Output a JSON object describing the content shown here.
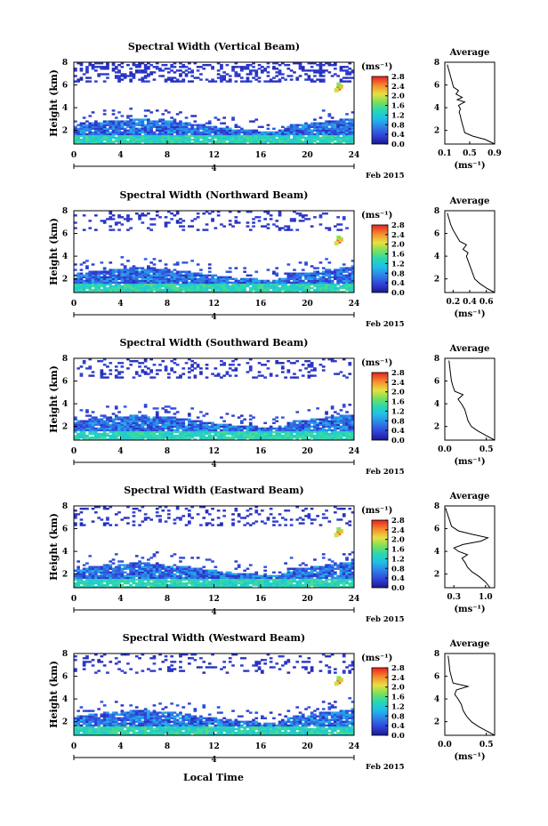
{
  "figure": {
    "xlabel": "Local Time",
    "date_label": "Feb 2015",
    "day_label": "4",
    "colorbar_unit": "(ms⁻¹)",
    "avg_title": "Average",
    "avg_xunit": "(ms⁻¹)"
  },
  "chart_data": [
    {
      "type": "heatmap",
      "title": "Spectral Width (Vertical Beam)",
      "ylabel": "Height (km)",
      "xlim": [
        0,
        24
      ],
      "xticks": [
        0,
        4,
        8,
        12,
        16,
        20,
        24
      ],
      "ylim": [
        0.8,
        8
      ],
      "yticks": [
        2,
        4,
        6,
        8
      ],
      "colorbar": {
        "unit": "(ms⁻¹)",
        "range": [
          0.0,
          2.8
        ],
        "ticks": [
          "2.8",
          "2.4",
          "2.0",
          "1.6",
          "1.2",
          "0.8",
          "0.4",
          "0.0"
        ]
      },
      "average_profile": {
        "title": "Average",
        "xunit": "(ms⁻¹)",
        "xticks": [
          "0.1",
          "0.5",
          "0.9"
        ],
        "xlim": [
          0.1,
          0.9
        ],
        "ylim": [
          0.8,
          8
        ],
        "yticks": [
          2,
          4,
          6,
          8
        ],
        "points": [
          [
            0.9,
            0.8
          ],
          [
            0.75,
            1.2
          ],
          [
            0.55,
            1.5
          ],
          [
            0.42,
            1.8
          ],
          [
            0.4,
            2.2
          ],
          [
            0.38,
            2.6
          ],
          [
            0.36,
            3.0
          ],
          [
            0.35,
            3.3
          ],
          [
            0.33,
            3.6
          ],
          [
            0.35,
            3.9
          ],
          [
            0.32,
            4.2
          ],
          [
            0.42,
            4.5
          ],
          [
            0.3,
            4.7
          ],
          [
            0.38,
            4.9
          ],
          [
            0.28,
            5.2
          ],
          [
            0.32,
            5.5
          ],
          [
            0.24,
            5.8
          ],
          [
            0.22,
            6.2
          ],
          [
            0.2,
            6.6
          ],
          [
            0.18,
            7.0
          ],
          [
            0.16,
            7.4
          ],
          [
            0.14,
            7.8
          ]
        ]
      },
      "hot_spot_time": 22.5,
      "hot_spot_height": 5.6
    },
    {
      "type": "heatmap",
      "title": "Spectral Width (Northward Beam)",
      "ylabel": "Height (km)",
      "xlim": [
        0,
        24
      ],
      "xticks": [
        0,
        4,
        8,
        12,
        16,
        20,
        24
      ],
      "ylim": [
        0.8,
        8
      ],
      "yticks": [
        2,
        4,
        6,
        8
      ],
      "colorbar": {
        "unit": "(ms⁻¹)",
        "range": [
          0.0,
          2.8
        ],
        "ticks": [
          "2.8",
          "2.4",
          "2.0",
          "1.6",
          "1.2",
          "0.8",
          "0.4",
          "0.0"
        ]
      },
      "average_profile": {
        "title": "Average",
        "xunit": "(ms⁻¹)",
        "xticks": [
          "0.2",
          "0.4",
          "0.6"
        ],
        "xlim": [
          0.1,
          0.7
        ],
        "ylim": [
          0.8,
          8
        ],
        "yticks": [
          2,
          4,
          6,
          8
        ],
        "points": [
          [
            0.7,
            0.8
          ],
          [
            0.6,
            1.2
          ],
          [
            0.52,
            1.6
          ],
          [
            0.46,
            2.0
          ],
          [
            0.44,
            2.4
          ],
          [
            0.42,
            2.8
          ],
          [
            0.4,
            3.2
          ],
          [
            0.38,
            3.6
          ],
          [
            0.36,
            4.0
          ],
          [
            0.38,
            4.3
          ],
          [
            0.32,
            4.6
          ],
          [
            0.36,
            5.0
          ],
          [
            0.28,
            5.3
          ],
          [
            0.24,
            5.8
          ],
          [
            0.2,
            6.3
          ],
          [
            0.17,
            6.8
          ],
          [
            0.15,
            7.3
          ],
          [
            0.13,
            7.8
          ]
        ]
      },
      "hot_spot_time": 22.5,
      "hot_spot_height": 5.2
    },
    {
      "type": "heatmap",
      "title": "Spectral Width (Southward Beam)",
      "ylabel": "Height (km)",
      "xlim": [
        0,
        24
      ],
      "xticks": [
        0,
        4,
        8,
        12,
        16,
        20,
        24
      ],
      "ylim": [
        0.8,
        8
      ],
      "yticks": [
        2,
        4,
        6,
        8
      ],
      "colorbar": {
        "unit": "(ms⁻¹)",
        "range": [
          0.0,
          2.8
        ],
        "ticks": [
          "2.8",
          "2.4",
          "2.0",
          "1.6",
          "1.2",
          "0.8",
          "0.4",
          "0.0"
        ]
      },
      "average_profile": {
        "title": "Average",
        "xunit": "(ms⁻¹)",
        "xticks": [
          "0.0",
          "0.5"
        ],
        "xlim": [
          0.0,
          0.6
        ],
        "ylim": [
          0.8,
          8
        ],
        "yticks": [
          2,
          4,
          6,
          8
        ],
        "points": [
          [
            0.6,
            0.8
          ],
          [
            0.5,
            1.2
          ],
          [
            0.4,
            1.6
          ],
          [
            0.32,
            2.0
          ],
          [
            0.28,
            2.5
          ],
          [
            0.26,
            3.0
          ],
          [
            0.24,
            3.5
          ],
          [
            0.2,
            4.0
          ],
          [
            0.16,
            4.4
          ],
          [
            0.22,
            4.8
          ],
          [
            0.12,
            5.1
          ],
          [
            0.1,
            5.5
          ],
          [
            0.08,
            6.0
          ],
          [
            0.07,
            6.6
          ],
          [
            0.06,
            7.2
          ],
          [
            0.05,
            7.8
          ]
        ]
      },
      "hot_spot_time": null,
      "hot_spot_height": null
    },
    {
      "type": "heatmap",
      "title": "Spectral Width (Eastward Beam)",
      "ylabel": "Height (km)",
      "xlim": [
        0,
        24
      ],
      "xticks": [
        0,
        4,
        8,
        12,
        16,
        20,
        24
      ],
      "ylim": [
        0.8,
        8
      ],
      "yticks": [
        2,
        4,
        6,
        8
      ],
      "colorbar": {
        "unit": "(ms⁻¹)",
        "range": [
          0.0,
          2.8
        ],
        "ticks": [
          "2.8",
          "2.4",
          "2.0",
          "1.6",
          "1.2",
          "0.8",
          "0.4",
          "0.0"
        ]
      },
      "average_profile": {
        "title": "Average",
        "xunit": "(ms⁻¹)",
        "xticks": [
          "0.3",
          "1.0"
        ],
        "xlim": [
          0.1,
          1.2
        ],
        "ylim": [
          0.8,
          8
        ],
        "yticks": [
          2,
          4,
          6,
          8
        ],
        "points": [
          [
            1.1,
            0.8
          ],
          [
            1.0,
            1.3
          ],
          [
            0.85,
            1.8
          ],
          [
            0.7,
            2.2
          ],
          [
            0.6,
            2.6
          ],
          [
            0.55,
            3.0
          ],
          [
            0.48,
            3.4
          ],
          [
            0.6,
            3.7
          ],
          [
            0.4,
            4.0
          ],
          [
            0.3,
            4.3
          ],
          [
            0.5,
            4.6
          ],
          [
            0.9,
            4.9
          ],
          [
            1.05,
            5.2
          ],
          [
            0.7,
            5.5
          ],
          [
            0.4,
            5.8
          ],
          [
            0.25,
            6.2
          ],
          [
            0.2,
            6.8
          ],
          [
            0.15,
            7.4
          ],
          [
            0.12,
            7.8
          ]
        ]
      },
      "hot_spot_time": 22.5,
      "hot_spot_height": 5.5
    },
    {
      "type": "heatmap",
      "title": "Spectral Width (Westward Beam)",
      "ylabel": "Height (km)",
      "xlim": [
        0,
        24
      ],
      "xticks": [
        0,
        4,
        8,
        12,
        16,
        20,
        24
      ],
      "ylim": [
        0.8,
        8
      ],
      "yticks": [
        2,
        4,
        6,
        8
      ],
      "colorbar": {
        "unit": "(ms⁻¹)",
        "range": [
          0.0,
          2.8
        ],
        "ticks": [
          "2.8",
          "2.4",
          "2.0",
          "1.6",
          "1.2",
          "0.8",
          "0.4",
          "0.0"
        ]
      },
      "average_profile": {
        "title": "Average",
        "xunit": "(ms⁻¹)",
        "xticks": [
          "0.0",
          "0.5"
        ],
        "xlim": [
          0.0,
          0.6
        ],
        "ylim": [
          0.8,
          8
        ],
        "yticks": [
          2,
          4,
          6,
          8
        ],
        "points": [
          [
            0.6,
            0.8
          ],
          [
            0.5,
            1.2
          ],
          [
            0.4,
            1.6
          ],
          [
            0.32,
            2.0
          ],
          [
            0.26,
            2.5
          ],
          [
            0.22,
            3.0
          ],
          [
            0.2,
            3.5
          ],
          [
            0.16,
            4.0
          ],
          [
            0.12,
            4.4
          ],
          [
            0.14,
            4.8
          ],
          [
            0.28,
            5.1
          ],
          [
            0.1,
            5.4
          ],
          [
            0.08,
            5.9
          ],
          [
            0.06,
            6.5
          ],
          [
            0.05,
            7.2
          ],
          [
            0.04,
            7.8
          ]
        ]
      },
      "hot_spot_time": 22.5,
      "hot_spot_height": 5.4
    }
  ]
}
